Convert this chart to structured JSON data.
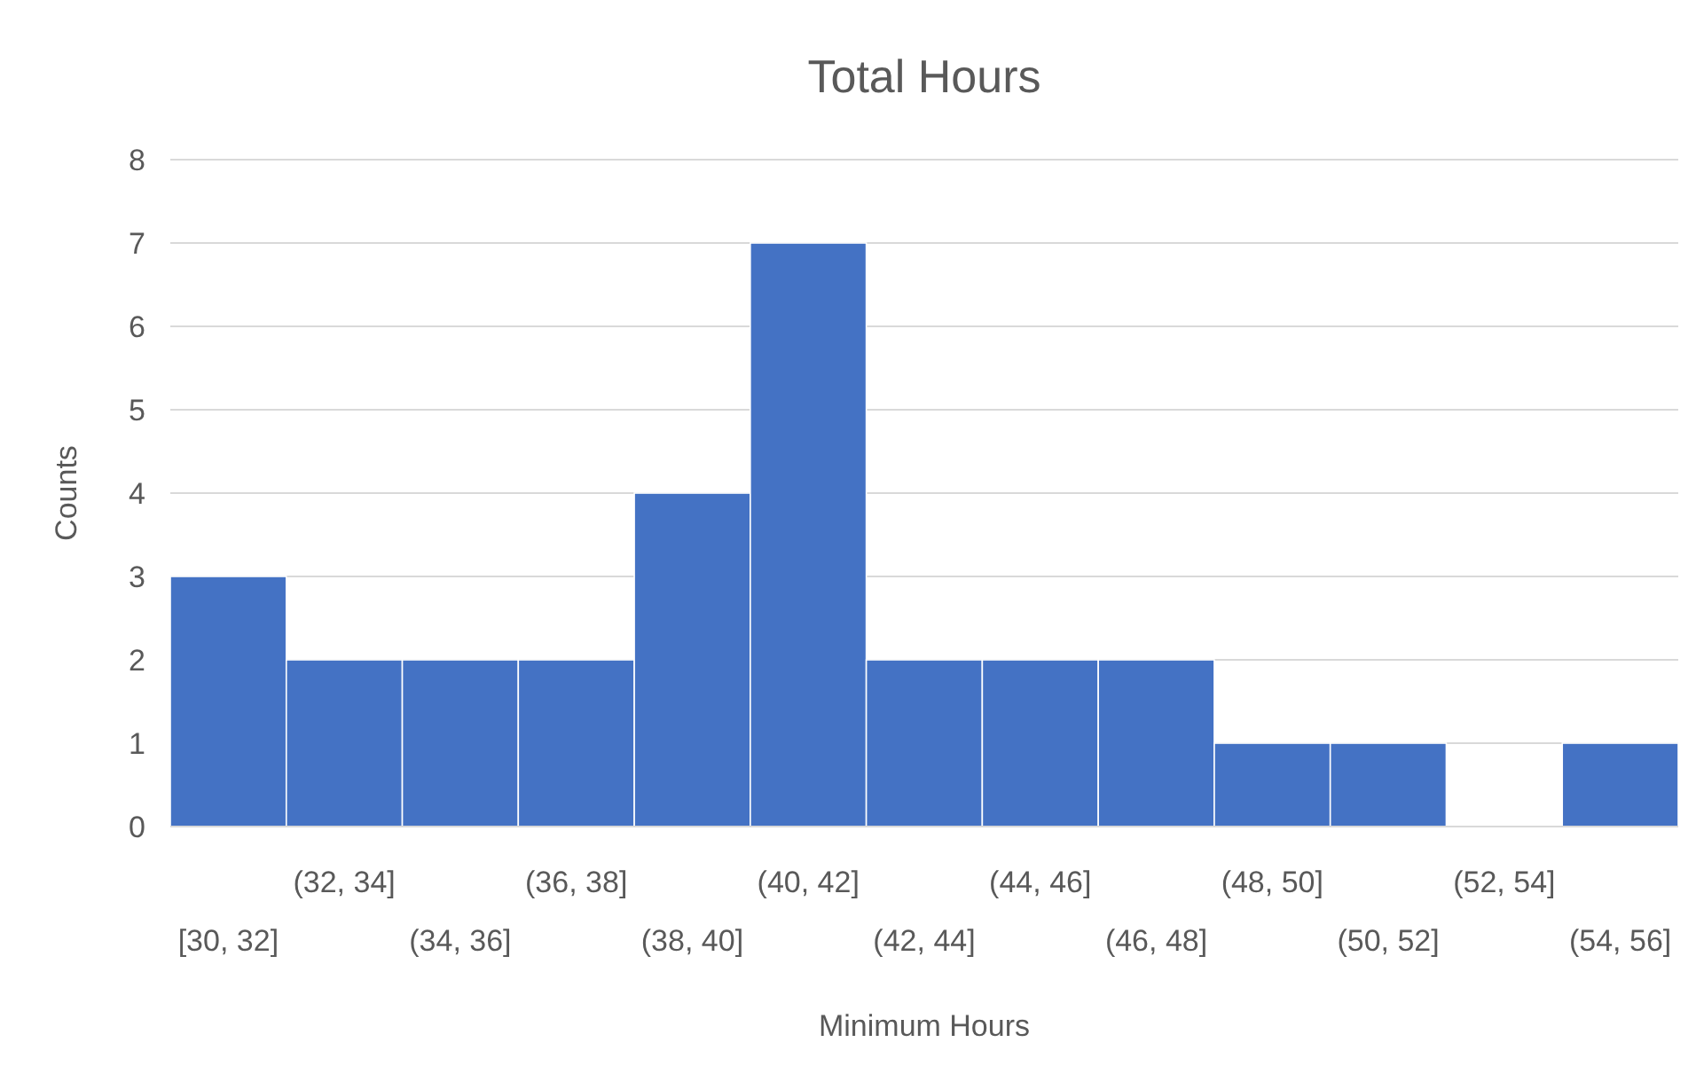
{
  "chart_data": {
    "type": "bar",
    "title": "Total Hours",
    "xlabel": "Minimum Hours",
    "ylabel": "Counts",
    "categories": [
      "[30, 32]",
      "(32, 34]",
      "(34, 36]",
      "(36, 38]",
      "(38, 40]",
      "(40, 42]",
      "(42, 44]",
      "(44, 46]",
      "(46, 48]",
      "(48, 50]",
      "(50, 52]",
      "(52, 54]",
      "(54, 56]"
    ],
    "values": [
      3,
      2,
      2,
      2,
      4,
      7,
      2,
      2,
      2,
      1,
      1,
      0,
      1
    ],
    "color": "#4472c4",
    "ylim": [
      0,
      8
    ],
    "yticks": [
      0,
      1,
      2,
      3,
      4,
      5,
      6,
      7,
      8
    ],
    "grid": "y"
  }
}
